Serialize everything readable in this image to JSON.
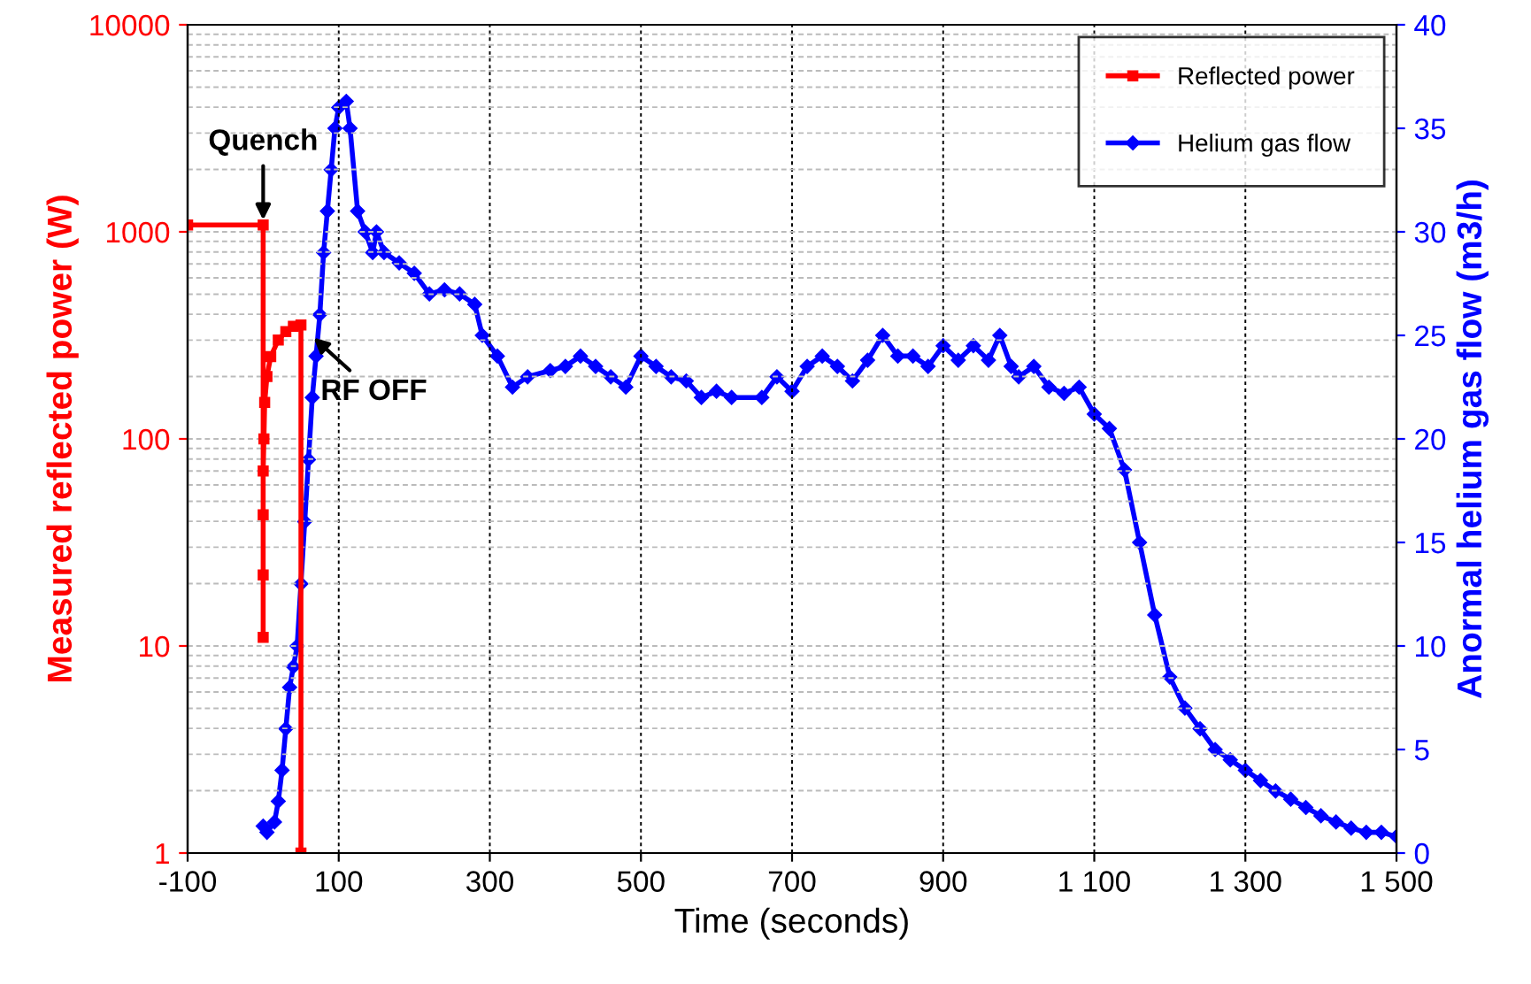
{
  "chart_data": {
    "type": "line",
    "xlabel": "Time (seconds)",
    "ylabel": "Measured reflected power (W)",
    "y2label": "Anormal helium gas flow (m3/h)",
    "xlim": [
      -100,
      1500
    ],
    "xticks": [
      -100,
      100,
      300,
      500,
      700,
      900,
      {
        "value": 1100,
        "label": "1 100"
      },
      {
        "value": 1300,
        "label": "1 300"
      },
      {
        "value": 1500,
        "label": "1 500"
      }
    ],
    "ylim": [
      1,
      10000
    ],
    "yticks": [
      1,
      10,
      100,
      1000,
      10000
    ],
    "y2lim": [
      0,
      40
    ],
    "y2ticks": [
      0,
      5,
      10,
      15,
      20,
      25,
      30,
      35,
      40
    ],
    "log": "y",
    "grid": true,
    "legend": "top right",
    "line_style": "solid",
    "series": [
      {
        "name": "Reflected power",
        "color": "#ff0000",
        "marker": "square",
        "x": [
          -100,
          0,
          0,
          0,
          0,
          0,
          1,
          2,
          5,
          10,
          20,
          30,
          40,
          50,
          50
        ],
        "values": [
          1080,
          1080,
          11,
          22,
          43,
          70,
          100,
          150,
          200,
          250,
          300,
          330,
          350,
          355,
          1
        ]
      },
      {
        "name": "Helium gas flow",
        "color": "#0000ff",
        "marker": "diamond",
        "axis": "y2",
        "x": [
          0,
          5,
          15,
          20,
          25,
          30,
          35,
          40,
          45,
          50,
          55,
          60,
          65,
          70,
          75,
          80,
          85,
          90,
          95,
          100,
          110,
          115,
          125,
          135,
          145,
          150,
          160,
          180,
          200,
          220,
          240,
          260,
          280,
          290,
          310,
          330,
          350,
          380,
          400,
          420,
          440,
          460,
          480,
          500,
          520,
          540,
          560,
          580,
          600,
          620,
          660,
          680,
          700,
          720,
          740,
          760,
          780,
          800,
          820,
          840,
          860,
          880,
          900,
          920,
          940,
          960,
          975,
          990,
          1000,
          1020,
          1040,
          1060,
          1080,
          1100,
          1120,
          1140,
          1160,
          1180,
          1200,
          1220,
          1240,
          1260,
          1280,
          1300,
          1320,
          1340,
          1360,
          1380,
          1400,
          1420,
          1440,
          1460,
          1480,
          1500
        ],
        "values": [
          1.3,
          1.0,
          1.5,
          2.5,
          4,
          6,
          8,
          9,
          10,
          13,
          16,
          19,
          22,
          24,
          26,
          29,
          31,
          33,
          35,
          36,
          36.3,
          35,
          31,
          30,
          29,
          30,
          29,
          28.5,
          28,
          27,
          27.2,
          27,
          26.5,
          25,
          24,
          22.5,
          23,
          23.3,
          23.5,
          24,
          23.5,
          23,
          22.5,
          24,
          23.5,
          23,
          22.8,
          22,
          22.3,
          22,
          22,
          23,
          22.3,
          23.5,
          24,
          23.5,
          22.8,
          23.8,
          25,
          24,
          24,
          23.5,
          24.5,
          23.8,
          24.5,
          23.8,
          25,
          23.5,
          23,
          23.5,
          22.5,
          22.2,
          22.5,
          21.2,
          20.5,
          18.5,
          15,
          11.5,
          8.5,
          7,
          6,
          5,
          4.5,
          4,
          3.5,
          3,
          2.6,
          2.2,
          1.8,
          1.5,
          1.2,
          1.0,
          1.0,
          0.8
        ]
      }
    ],
    "annotations": [
      {
        "text": "Quench",
        "x": 0,
        "y": 1080
      },
      {
        "text": "RF OFF",
        "x": 62,
        "y": 320
      }
    ]
  }
}
